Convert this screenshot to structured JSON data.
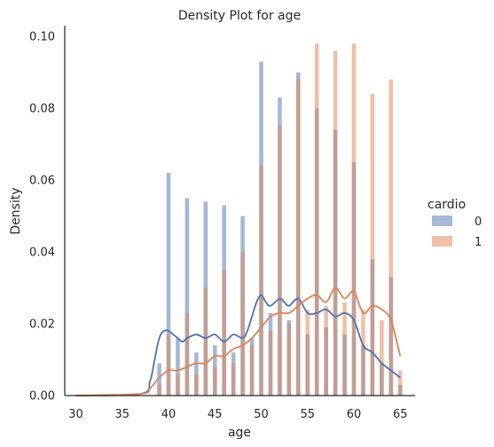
{
  "chart_data": {
    "type": "bar",
    "title": "Density Plot for age",
    "xlabel": "age",
    "ylabel": "Density",
    "xlim": [
      28.8,
      66.6
    ],
    "ylim": [
      0,
      0.103
    ],
    "xticks": [
      "30",
      "35",
      "40",
      "45",
      "50",
      "55",
      "60",
      "65"
    ],
    "yticks": [
      "0.00",
      "0.02",
      "0.04",
      "0.06",
      "0.08",
      "0.10"
    ],
    "legend": {
      "title": "cardio",
      "placement": "right"
    },
    "colors": {
      "0": "#4c72b0",
      "1": "#dd8452"
    },
    "x": [
      30,
      39,
      40,
      41,
      42,
      43,
      44,
      45,
      46,
      47,
      48,
      49,
      50,
      51,
      52,
      53,
      54,
      55,
      56,
      57,
      58,
      59,
      60,
      61,
      62,
      63,
      64,
      65
    ],
    "series": [
      {
        "name": "0",
        "values": [
          0.0,
          0.009,
          0.062,
          0.016,
          0.055,
          0.012,
          0.054,
          0.014,
          0.053,
          0.012,
          0.05,
          0.016,
          0.093,
          0.023,
          0.083,
          0.021,
          0.09,
          0.017,
          0.08,
          0.019,
          0.074,
          0.017,
          0.065,
          0.014,
          0.038,
          0.009,
          0.033,
          0.003
        ],
        "kde_x": [
          30,
          37,
          38,
          38.5,
          39,
          39.5,
          40,
          40.5,
          41,
          41.5,
          42,
          43,
          44,
          45,
          46,
          47,
          48,
          48.5,
          49,
          49.5,
          50,
          50.5,
          51,
          52,
          52.5,
          53,
          54,
          55,
          56,
          57,
          58,
          59,
          60,
          61,
          62,
          63,
          64,
          65
        ],
        "kde_y": [
          0.0,
          0.0005,
          0.004,
          0.01,
          0.016,
          0.018,
          0.018,
          0.017,
          0.016,
          0.015,
          0.016,
          0.017,
          0.016,
          0.017,
          0.015,
          0.017,
          0.016,
          0.018,
          0.022,
          0.026,
          0.028,
          0.026,
          0.025,
          0.027,
          0.026,
          0.025,
          0.027,
          0.023,
          0.023,
          0.024,
          0.022,
          0.023,
          0.021,
          0.014,
          0.012,
          0.009,
          0.007,
          0.005
        ]
      },
      {
        "name": "1",
        "values": [
          0.0,
          0.003,
          0.017,
          0.006,
          0.023,
          0.006,
          0.03,
          0.008,
          0.035,
          0.009,
          0.04,
          0.014,
          0.064,
          0.018,
          0.075,
          0.02,
          0.088,
          0.024,
          0.098,
          0.025,
          0.096,
          0.026,
          0.098,
          0.024,
          0.084,
          0.021,
          0.088,
          0.007
        ],
        "kde_x": [
          30,
          37,
          38,
          39,
          40,
          41,
          42,
          43,
          44,
          45,
          46,
          47,
          48,
          49,
          50,
          51,
          52,
          53,
          54,
          55,
          56,
          57,
          58,
          59,
          60,
          61,
          62,
          63,
          64,
          65
        ],
        "kde_y": [
          0.0,
          0.0005,
          0.002,
          0.005,
          0.007,
          0.007,
          0.008,
          0.009,
          0.009,
          0.011,
          0.011,
          0.013,
          0.014,
          0.016,
          0.019,
          0.022,
          0.023,
          0.023,
          0.025,
          0.027,
          0.028,
          0.026,
          0.03,
          0.027,
          0.029,
          0.023,
          0.025,
          0.024,
          0.021,
          0.011
        ]
      }
    ]
  }
}
